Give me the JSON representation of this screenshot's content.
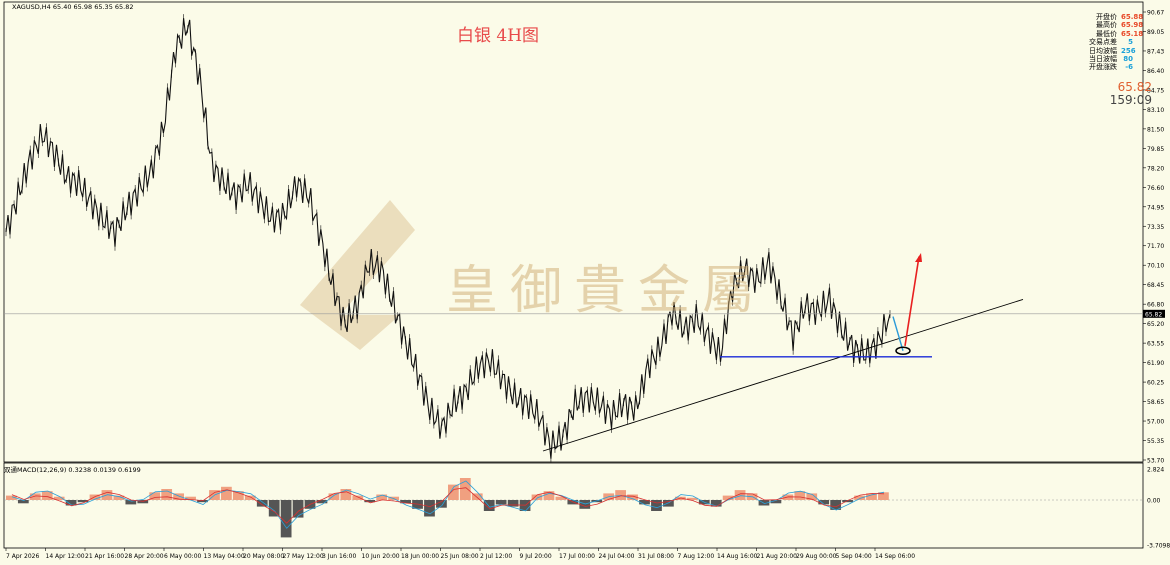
{
  "header": {
    "symbol_line": "XAGUSD,H4 65.40 65.98 65.35 65.82",
    "title": "白银 4H图",
    "watermark": "皇御貴金屬"
  },
  "info_panel": [
    {
      "label": "开盘价",
      "value": "65.88",
      "color": "#e84a2a"
    },
    {
      "label": "最高价",
      "value": "65.98",
      "color": "#e84a2a"
    },
    {
      "label": "最低价",
      "value": "65.18",
      "color": "#e84a2a"
    },
    {
      "label": "交易点差",
      "value": "5",
      "color": "#1aa0d8"
    },
    {
      "label": "日均波幅",
      "value": "256",
      "color": "#1aa0d8"
    },
    {
      "label": "当日波幅",
      "value": "80",
      "color": "#1aa0d8"
    },
    {
      "label": "开盘涨跌",
      "value": "-6",
      "color": "#1aa0d8"
    }
  ],
  "current": {
    "price": "65.82",
    "countdown": "159:09"
  },
  "macd_label": "双通MACD(12,26,9) 0.3238 0.0139 0.6199",
  "chart_data": {
    "type": "line",
    "ylim": [
      53.7,
      90.67
    ],
    "y_ticks": [
      "90.67",
      "89.05",
      "87.43",
      "86.40",
      "84.75",
      "83.10",
      "81.50",
      "79.85",
      "78.20",
      "76.60",
      "74.95",
      "73.35",
      "71.70",
      "70.10",
      "68.45",
      "66.80",
      "65.20",
      "63.55",
      "61.90",
      "60.25",
      "58.65",
      "57.00",
      "55.35",
      "53.70"
    ],
    "price_label": "65.82",
    "macd_ticks": [
      "2.824",
      "0.00",
      "-3.7098"
    ],
    "x_labels": [
      "7 Apr 2026",
      "14 Apr 12:00",
      "21 Apr 16:00",
      "28 Apr 20:00",
      "6 May 00:00",
      "13 May 04:00",
      "20 May 08:00",
      "27 May 12:00",
      "3 Jun 16:00",
      "10 Jun 20:00",
      "18 Jun 00:00",
      "25 Jun 08:00",
      "2 Jul 12:00",
      "9 Jul 20:00",
      "17 Jul 00:00",
      "24 Jul 04:00",
      "31 Jul 08:00",
      "7 Aug 12:00",
      "14 Aug 16:00",
      "21 Aug 20:00",
      "29 Aug 00:00",
      "5 Sep 04:00",
      "14 Sep 06:00"
    ],
    "price_path": [
      72.5,
      75.5,
      78.5,
      80.5,
      79.0,
      77.0,
      76.5,
      75.0,
      73.5,
      72.5,
      74.5,
      76.0,
      77.5,
      81.0,
      87.5,
      89.5,
      85.0,
      78.0,
      76.5,
      75.5,
      76.5,
      75.0,
      73.5,
      74.0,
      76.5,
      75.5,
      72.0,
      68.0,
      65.0,
      66.5,
      70.0,
      69.5,
      66.5,
      63.5,
      61.0,
      58.0,
      56.5,
      58.5,
      59.5,
      61.5,
      62.0,
      60.5,
      59.0,
      58.5,
      57.5,
      55.0,
      55.8,
      58.5,
      59.0,
      58.5,
      57.5,
      58.5,
      58.0,
      61.5,
      63.0,
      66.0,
      64.5,
      65.5,
      64.0,
      62.5,
      68.0,
      69.5,
      68.5,
      70.0,
      67.0,
      64.0,
      66.5,
      66.0,
      67.0,
      64.5,
      63.0,
      62.5,
      63.5,
      65.8
    ],
    "support_level": 62.3,
    "trendline": [
      {
        "x": "17 Jul 00:00",
        "y": 54.6
      },
      {
        "x": "end",
        "y": 65.8
      }
    ],
    "macd_bars": [
      0.4,
      -0.3,
      0.6,
      0.8,
      0.3,
      -0.5,
      -0.2,
      0.5,
      0.9,
      0.4,
      -0.4,
      -0.3,
      0.7,
      1.0,
      0.6,
      0.3,
      -0.2,
      0.9,
      1.2,
      0.8,
      0.4,
      -0.6,
      -1.5,
      -3.4,
      -1.6,
      -0.8,
      -0.3,
      0.6,
      1.0,
      0.4,
      -0.2,
      0.5,
      0.3,
      -0.3,
      -0.8,
      -1.5,
      -0.7,
      1.4,
      2.0,
      0.6,
      -1.0,
      -0.4,
      -0.6,
      -1.0,
      0.5,
      0.8,
      0.3,
      -0.4,
      -0.8,
      -0.2,
      0.6,
      0.9,
      0.5,
      -0.4,
      -1.0,
      -0.6,
      0.3,
      0.2,
      -0.4,
      -0.6,
      0.4,
      0.9,
      0.6,
      -0.5,
      -0.3,
      0.5,
      0.8,
      0.6,
      -0.4,
      -0.9,
      -0.2,
      0.4,
      0.6,
      0.7
    ],
    "annotations": {
      "up_arrow": "red",
      "down_arrow": "blue",
      "ellipse": "black"
    }
  }
}
